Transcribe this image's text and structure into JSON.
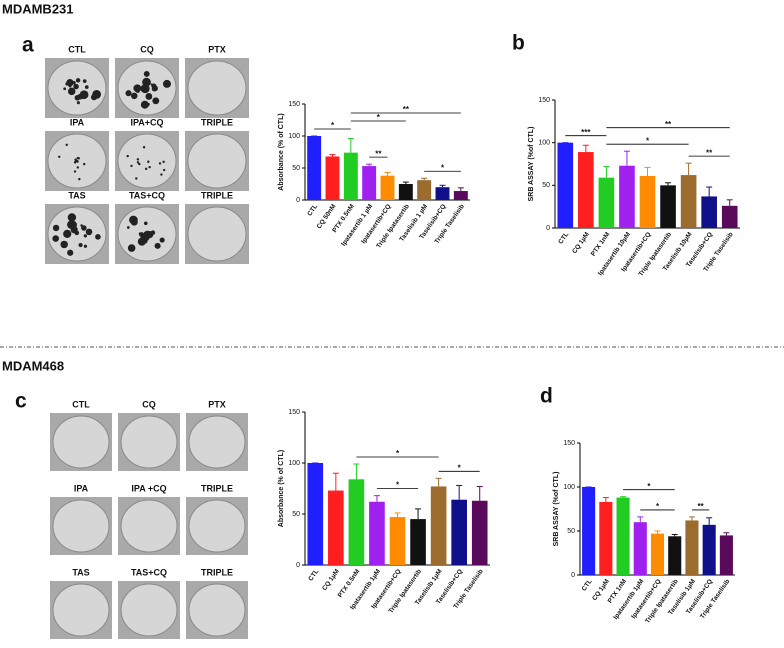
{
  "sections": [
    {
      "name": "MDAMB231",
      "photo_labels": [
        "CTL",
        "CQ",
        "PTX",
        "IPA",
        "IPA+CQ",
        "TRIPLE",
        "TAS",
        "TAS+CQ",
        "TRIPLE"
      ]
    },
    {
      "name": "MDAM468",
      "photo_labels": [
        "CTL",
        "CQ",
        "PTX",
        "IPA",
        "IPA +CQ",
        "TRIPLE",
        "TAS",
        "TAS+CQ",
        "TRIPLE"
      ]
    }
  ],
  "chart_data": [
    {
      "type": "bar",
      "panel_label": "a",
      "y_label": "Absorbance (% of CTL)",
      "categories": [
        "CTL",
        "CQ 50nM",
        "PTX 0.5nM",
        "Ipatasertib 1 µM",
        "Ipatasertib+CQ",
        "Triple Ipatasertib",
        "Taselisib 1 µM",
        "Taselisib+CQ",
        "Triple Taselisib"
      ],
      "values": [
        100,
        68,
        74,
        53,
        38,
        25,
        31,
        20,
        14
      ],
      "errors": [
        0,
        3,
        22,
        3,
        5,
        3,
        3,
        3,
        5
      ],
      "colors": [
        "#1f1fff",
        "#ff1f1f",
        "#22cc22",
        "#a020f0",
        "#ff8c00",
        "#111111",
        "#9c6b2e",
        "#10108a",
        "#5a0a5a"
      ],
      "ylim": [
        0,
        150
      ],
      "yticks": [
        0,
        50,
        100,
        150
      ],
      "significance": [
        {
          "from": 0,
          "to": 2,
          "label": "*"
        },
        {
          "from": 3,
          "to": 4,
          "label": "**"
        },
        {
          "from": 6,
          "to": 8,
          "label": "*"
        },
        {
          "from": 2,
          "to": 5,
          "label": "*"
        },
        {
          "from": 2,
          "to": 8,
          "label": "**"
        }
      ]
    },
    {
      "type": "bar",
      "panel_label": "b",
      "y_label": "SRB ASSAY (%of CTL)",
      "categories": [
        "CTL",
        "CQ 1µM",
        "PTX 1nM",
        "Ipatasertib 10µM",
        "Ipatasertib+CQ",
        "Triple Ipatasertib",
        "Taselisib 10µM",
        "Taselisib+CQ",
        "Triple Taselisib"
      ],
      "values": [
        100,
        89,
        59,
        73,
        61,
        50,
        62,
        37,
        26
      ],
      "errors": [
        0,
        8,
        13,
        17,
        10,
        3,
        14,
        11,
        7
      ],
      "colors": [
        "#1f1fff",
        "#ff1f1f",
        "#22cc22",
        "#a020f0",
        "#ff8c00",
        "#111111",
        "#9c6b2e",
        "#10108a",
        "#5a0a5a"
      ],
      "ylim": [
        0,
        150
      ],
      "yticks": [
        0,
        50,
        100,
        150
      ],
      "significance": [
        {
          "from": 0,
          "to": 2,
          "label": "***"
        },
        {
          "from": 6,
          "to": 8,
          "label": "**"
        },
        {
          "from": 2,
          "to": 6,
          "label": "*"
        },
        {
          "from": 2,
          "to": 8,
          "label": "**"
        }
      ]
    },
    {
      "type": "bar",
      "panel_label": "c",
      "y_label": "Absorbance (% of CTL)",
      "categories": [
        "CTL",
        "CQ 1µM",
        "PTX 0.5nM",
        "Ipatasertib 1µM",
        "Ipatasertib+CQ",
        "Triple Ipatasertib",
        "Taselisib 1µM",
        "Taselisib+CQ",
        "Triple Taselisib"
      ],
      "values": [
        100,
        73,
        84,
        62,
        47,
        45,
        77,
        64,
        63
      ],
      "errors": [
        0,
        17,
        15,
        6,
        4,
        10,
        8,
        14,
        14
      ],
      "colors": [
        "#1f1fff",
        "#ff1f1f",
        "#22cc22",
        "#a020f0",
        "#ff8c00",
        "#111111",
        "#9c6b2e",
        "#10108a",
        "#5a0a5a"
      ],
      "ylim": [
        0,
        150
      ],
      "yticks": [
        0,
        50,
        100,
        150
      ],
      "significance": [
        {
          "from": 3,
          "to": 5,
          "label": "*"
        },
        {
          "from": 6,
          "to": 8,
          "label": "*"
        },
        {
          "from": 2,
          "to": 6,
          "label": "*"
        }
      ]
    },
    {
      "type": "bar",
      "panel_label": "d",
      "y_label": "SRB ASSAY (%of CTL)",
      "categories": [
        "CTL",
        "CQ 1µM",
        "PTX 1nM",
        "Ipatasertib 1µM",
        "Ipatasertib+CQ",
        "Triple Ipatasertib",
        "Taselisib 1µM",
        "Taselisib+CQ",
        "Triple Taselisib"
      ],
      "values": [
        100,
        83,
        88,
        60,
        47,
        44,
        62,
        57,
        45
      ],
      "errors": [
        0,
        5,
        1,
        6,
        3,
        2,
        4,
        8,
        3
      ],
      "colors": [
        "#1f1fff",
        "#ff1f1f",
        "#22cc22",
        "#a020f0",
        "#ff8c00",
        "#111111",
        "#9c6b2e",
        "#10108a",
        "#5a0a5a"
      ],
      "ylim": [
        0,
        150
      ],
      "yticks": [
        0,
        50,
        100,
        150
      ],
      "significance": [
        {
          "from": 3,
          "to": 5,
          "label": "*"
        },
        {
          "from": 6,
          "to": 7,
          "label": "**"
        },
        {
          "from": 2,
          "to": 5,
          "label": "*"
        }
      ]
    }
  ]
}
